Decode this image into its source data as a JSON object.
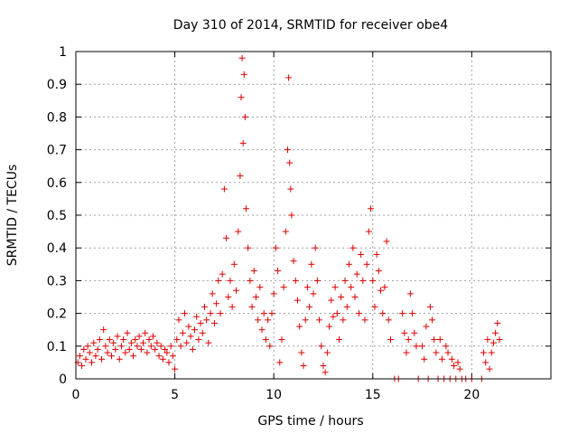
{
  "chart_data": {
    "type": "scatter",
    "title": "Day 310 of 2014, SRMTID for receiver obe4",
    "xlabel": "GPS time / hours",
    "ylabel": "SRMTID / TECUs",
    "xlim": [
      0,
      24
    ],
    "ylim": [
      0,
      1
    ],
    "xticks": [
      0,
      5,
      10,
      15,
      20
    ],
    "yticks": [
      0,
      0.1,
      0.2,
      0.3,
      0.4,
      0.5,
      0.6,
      0.7,
      0.8,
      0.9,
      1
    ],
    "xtick_labels": [
      "0",
      "5",
      "10",
      "15",
      "20"
    ],
    "ytick_labels": [
      "0",
      "0.1",
      "0.2",
      "0.3",
      "0.4",
      "0.5",
      "0.6",
      "0.7",
      "0.8",
      "0.9",
      "1"
    ],
    "grid": true,
    "marker": "+",
    "color": "#dd0000",
    "series": [
      {
        "name": "SRMTID",
        "points": [
          [
            0.1,
            0.05
          ],
          [
            0.2,
            0.07
          ],
          [
            0.3,
            0.04
          ],
          [
            0.4,
            0.09
          ],
          [
            0.5,
            0.06
          ],
          [
            0.6,
            0.1
          ],
          [
            0.7,
            0.08
          ],
          [
            0.8,
            0.05
          ],
          [
            0.9,
            0.11
          ],
          [
            1.0,
            0.07
          ],
          [
            1.1,
            0.09
          ],
          [
            1.2,
            0.12
          ],
          [
            1.3,
            0.06
          ],
          [
            1.4,
            0.15
          ],
          [
            1.5,
            0.1
          ],
          [
            1.6,
            0.08
          ],
          [
            1.7,
            0.12
          ],
          [
            1.8,
            0.07
          ],
          [
            1.9,
            0.11
          ],
          [
            2.0,
            0.09
          ],
          [
            2.1,
            0.13
          ],
          [
            2.2,
            0.06
          ],
          [
            2.3,
            0.1
          ],
          [
            2.4,
            0.12
          ],
          [
            2.5,
            0.08
          ],
          [
            2.6,
            0.14
          ],
          [
            2.7,
            0.09
          ],
          [
            2.8,
            0.11
          ],
          [
            2.9,
            0.07
          ],
          [
            3.0,
            0.12
          ],
          [
            3.1,
            0.1
          ],
          [
            3.2,
            0.13
          ],
          [
            3.3,
            0.09
          ],
          [
            3.4,
            0.11
          ],
          [
            3.5,
            0.14
          ],
          [
            3.6,
            0.08
          ],
          [
            3.7,
            0.12
          ],
          [
            3.8,
            0.1
          ],
          [
            3.9,
            0.13
          ],
          [
            4.0,
            0.09
          ],
          [
            4.1,
            0.11
          ],
          [
            4.2,
            0.07
          ],
          [
            4.3,
            0.1
          ],
          [
            4.4,
            0.06
          ],
          [
            4.5,
            0.09
          ],
          [
            4.6,
            0.08
          ],
          [
            4.7,
            0.05
          ],
          [
            4.8,
            0.1
          ],
          [
            4.9,
            0.07
          ],
          [
            5.0,
            0.03
          ],
          [
            5.1,
            0.12
          ],
          [
            5.2,
            0.18
          ],
          [
            5.3,
            0.1
          ],
          [
            5.4,
            0.14
          ],
          [
            5.5,
            0.2
          ],
          [
            5.6,
            0.11
          ],
          [
            5.7,
            0.16
          ],
          [
            5.8,
            0.13
          ],
          [
            5.9,
            0.09
          ],
          [
            6.0,
            0.15
          ],
          [
            6.1,
            0.19
          ],
          [
            6.2,
            0.12
          ],
          [
            6.3,
            0.17
          ],
          [
            6.4,
            0.14
          ],
          [
            6.5,
            0.22
          ],
          [
            6.6,
            0.18
          ],
          [
            6.7,
            0.11
          ],
          [
            6.8,
            0.2
          ],
          [
            6.9,
            0.26
          ],
          [
            7.0,
            0.17
          ],
          [
            7.1,
            0.23
          ],
          [
            7.2,
            0.3
          ],
          [
            7.3,
            0.2
          ],
          [
            7.4,
            0.32
          ],
          [
            7.5,
            0.58
          ],
          [
            7.6,
            0.43
          ],
          [
            7.7,
            0.25
          ],
          [
            7.8,
            0.3
          ],
          [
            7.9,
            0.22
          ],
          [
            8.0,
            0.35
          ],
          [
            8.1,
            0.27
          ],
          [
            8.2,
            0.45
          ],
          [
            8.3,
            0.62
          ],
          [
            8.35,
            0.86
          ],
          [
            8.4,
            0.98
          ],
          [
            8.45,
            0.72
          ],
          [
            8.5,
            0.93
          ],
          [
            8.55,
            0.8
          ],
          [
            8.6,
            0.52
          ],
          [
            8.7,
            0.4
          ],
          [
            8.8,
            0.3
          ],
          [
            8.9,
            0.22
          ],
          [
            9.0,
            0.33
          ],
          [
            9.1,
            0.25
          ],
          [
            9.2,
            0.18
          ],
          [
            9.3,
            0.28
          ],
          [
            9.4,
            0.15
          ],
          [
            9.5,
            0.2
          ],
          [
            9.6,
            0.12
          ],
          [
            9.7,
            0.18
          ],
          [
            9.8,
            0.1
          ],
          [
            9.9,
            0.2
          ],
          [
            10.0,
            0.26
          ],
          [
            10.1,
            0.4
          ],
          [
            10.2,
            0.33
          ],
          [
            10.3,
            0.05
          ],
          [
            10.4,
            0.12
          ],
          [
            10.5,
            0.28
          ],
          [
            10.6,
            0.45
          ],
          [
            10.7,
            0.7
          ],
          [
            10.75,
            0.92
          ],
          [
            10.8,
            0.66
          ],
          [
            10.85,
            0.58
          ],
          [
            10.9,
            0.5
          ],
          [
            11.0,
            0.36
          ],
          [
            11.1,
            0.3
          ],
          [
            11.2,
            0.24
          ],
          [
            11.3,
            0.16
          ],
          [
            11.4,
            0.08
          ],
          [
            11.5,
            0.04
          ],
          [
            11.6,
            0.18
          ],
          [
            11.7,
            0.28
          ],
          [
            11.8,
            0.22
          ],
          [
            11.9,
            0.35
          ],
          [
            12.0,
            0.26
          ],
          [
            12.1,
            0.4
          ],
          [
            12.2,
            0.3
          ],
          [
            12.3,
            0.18
          ],
          [
            12.4,
            0.1
          ],
          [
            12.5,
            0.04
          ],
          [
            12.6,
            0.02
          ],
          [
            12.7,
            0.08
          ],
          [
            12.8,
            0.16
          ],
          [
            12.9,
            0.24
          ],
          [
            13.0,
            0.19
          ],
          [
            13.1,
            0.28
          ],
          [
            13.2,
            0.2
          ],
          [
            13.3,
            0.12
          ],
          [
            13.4,
            0.25
          ],
          [
            13.5,
            0.18
          ],
          [
            13.6,
            0.3
          ],
          [
            13.7,
            0.22
          ],
          [
            13.8,
            0.35
          ],
          [
            13.9,
            0.28
          ],
          [
            14.0,
            0.4
          ],
          [
            14.1,
            0.25
          ],
          [
            14.2,
            0.32
          ],
          [
            14.3,
            0.2
          ],
          [
            14.4,
            0.38
          ],
          [
            14.5,
            0.3
          ],
          [
            14.6,
            0.18
          ],
          [
            14.7,
            0.35
          ],
          [
            14.8,
            0.45
          ],
          [
            14.9,
            0.52
          ],
          [
            15.0,
            0.3
          ],
          [
            15.1,
            0.22
          ],
          [
            15.2,
            0.38
          ],
          [
            15.3,
            0.33
          ],
          [
            15.4,
            0.27
          ],
          [
            15.5,
            0.2
          ],
          [
            15.6,
            0.28
          ],
          [
            15.7,
            0.42
          ],
          [
            15.8,
            0.18
          ],
          [
            15.9,
            0.12
          ],
          [
            16.1,
            0.0
          ],
          [
            16.3,
            0.0
          ],
          [
            16.5,
            0.2
          ],
          [
            16.6,
            0.14
          ],
          [
            16.7,
            0.08
          ],
          [
            16.8,
            0.12
          ],
          [
            16.9,
            0.26
          ],
          [
            17.0,
            0.2
          ],
          [
            17.1,
            0.14
          ],
          [
            17.2,
            0.1
          ],
          [
            17.3,
            0.0
          ],
          [
            17.5,
            0.1
          ],
          [
            17.6,
            0.06
          ],
          [
            17.7,
            0.16
          ],
          [
            17.8,
            0.0
          ],
          [
            17.9,
            0.22
          ],
          [
            18.0,
            0.18
          ],
          [
            18.1,
            0.12
          ],
          [
            18.2,
            0.08
          ],
          [
            18.3,
            0.0
          ],
          [
            18.4,
            0.12
          ],
          [
            18.5,
            0.06
          ],
          [
            18.6,
            0.0
          ],
          [
            18.7,
            0.1
          ],
          [
            18.8,
            0.08
          ],
          [
            18.9,
            0.0
          ],
          [
            19.0,
            0.06
          ],
          [
            19.1,
            0.04
          ],
          [
            19.2,
            0.0
          ],
          [
            19.3,
            0.05
          ],
          [
            19.4,
            0.03
          ],
          [
            19.5,
            0.0
          ],
          [
            19.7,
            0.0
          ],
          [
            20.0,
            0.0
          ],
          [
            20.5,
            0.0
          ],
          [
            20.6,
            0.08
          ],
          [
            20.7,
            0.05
          ],
          [
            20.8,
            0.12
          ],
          [
            20.9,
            0.03
          ],
          [
            21.0,
            0.08
          ],
          [
            21.1,
            0.11
          ],
          [
            21.2,
            0.14
          ],
          [
            21.3,
            0.17
          ],
          [
            21.4,
            0.12
          ]
        ]
      }
    ]
  }
}
